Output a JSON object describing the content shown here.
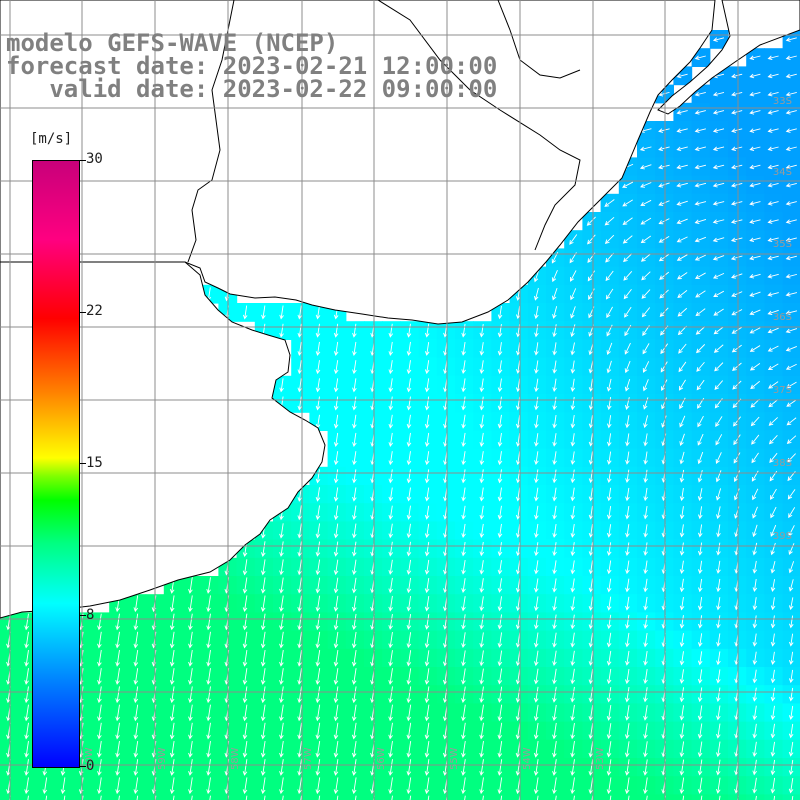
{
  "title": {
    "line1": "modelo GEFS-WAVE (NCEP)",
    "line2": "forecast date: 2023-02-21 12:00:00",
    "line3": "   valid date: 2023-02-22 09:00:00"
  },
  "colorbar": {
    "unit": "[m/s]",
    "ticks": [
      "30",
      "22",
      "15",
      "8",
      "0"
    ],
    "tick_values": [
      30,
      22,
      15,
      8,
      0
    ],
    "range": [
      0,
      30
    ]
  },
  "colors": {
    "land": "#ffffff",
    "grid": "#8c8c8c",
    "coast": "#000000",
    "arrows": "#ffffff"
  },
  "grid_labels": {
    "lat": [
      "33S",
      "34S",
      "35S",
      "36S",
      "37S",
      "38S",
      "39S"
    ],
    "lon": [
      "60W",
      "59W",
      "58W",
      "57W",
      "56W",
      "55W",
      "54W",
      "53W"
    ]
  },
  "wind_field": {
    "description_units": "m/s",
    "northeast_offshore": 5,
    "river_plate": 8,
    "south_coastal": 11
  }
}
